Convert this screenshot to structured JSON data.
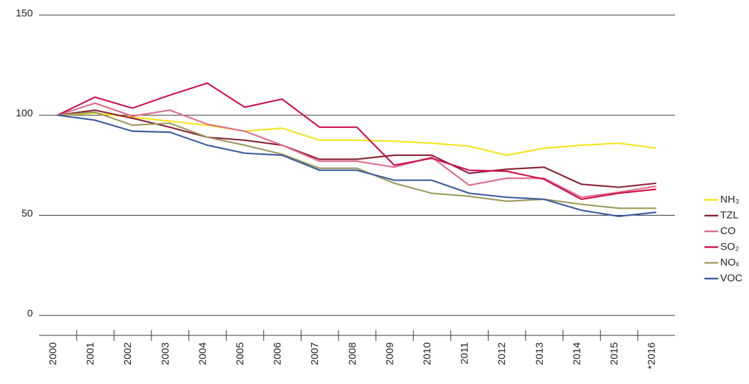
{
  "chart_data": {
    "type": "line",
    "categories": [
      "2000",
      "2001",
      "2002",
      "2003",
      "2004",
      "2005",
      "2006",
      "2007",
      "2008",
      "2009",
      "2010",
      "2011",
      "2012",
      "2013",
      "2014",
      "2015",
      "*2016"
    ],
    "series": [
      {
        "name": "NH₃",
        "color": "#f7e31b",
        "values": [
          100,
          101,
          99,
          97,
          95,
          92,
          93.5,
          87.5,
          87.5,
          87,
          86,
          84.5,
          80,
          83.5,
          85,
          86,
          83.5
        ]
      },
      {
        "name": "TZL",
        "color": "#8b2235",
        "values": [
          100,
          102.5,
          98.5,
          94,
          89,
          87.5,
          85,
          78,
          78,
          80,
          80,
          71,
          73,
          74,
          65.5,
          64,
          66
        ]
      },
      {
        "name": "CO",
        "color": "#e06a8c",
        "values": [
          100,
          106,
          99.5,
          102.5,
          95.5,
          92,
          85,
          77,
          77,
          74,
          79,
          65,
          68.5,
          68.5,
          59,
          61.5,
          64.5
        ]
      },
      {
        "name": "SO₂",
        "color": "#cf0f4b",
        "values": [
          100,
          109,
          103.5,
          110,
          116,
          104,
          108,
          94,
          94,
          75,
          78.5,
          72.5,
          72,
          68,
          58,
          61,
          63
        ]
      },
      {
        "name": "NOₓ",
        "color": "#9c9a5c",
        "values": [
          100,
          101.5,
          95,
          96,
          89,
          85,
          80.5,
          73.5,
          73.5,
          66,
          61,
          59.5,
          57,
          58,
          55.5,
          53.5,
          53.5
        ]
      },
      {
        "name": "VOC",
        "color": "#3a5b9e",
        "values": [
          100,
          97.5,
          92,
          91.5,
          85,
          81,
          80,
          72.5,
          72.5,
          67.5,
          67.5,
          61,
          59,
          58,
          52.5,
          49.5,
          51.5
        ]
      }
    ],
    "ylim": [
      -10,
      150
    ],
    "yticks": [
      0,
      50,
      100,
      150
    ],
    "grid": true
  }
}
